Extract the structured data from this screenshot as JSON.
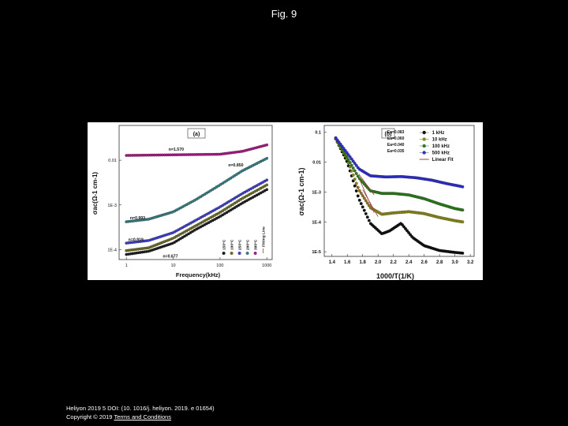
{
  "page": {
    "title": "Fig. 9"
  },
  "footer": {
    "citation": "Heliyon 2019 5 DOI: (10. 1016/j. heliyon. 2019. e 01654)",
    "copyright": "Copyright © 2019",
    "terms_link": "Terms and Conditions"
  },
  "chart_data": [
    {
      "type": "scatter",
      "panel_label": "(a)",
      "xlabel": "Frequency(kHz)",
      "ylabel": "σac(Ω-1 cm-1)",
      "xscale": "log",
      "yscale": "log",
      "xlim": [
        0.7,
        1300
      ],
      "ylim": [
        6e-05,
        0.06
      ],
      "x_ticks": [
        "1",
        "10",
        "100",
        "1000"
      ],
      "y_ticks": [
        "0.01",
        "1E-3",
        "1E-4"
      ],
      "annotations": [
        {
          "text": "n=1.570",
          "series": "390°C"
        },
        {
          "text": "n=0.850",
          "series": "290°C"
        },
        {
          "text": "n=0.993",
          "series": "290°C"
        },
        {
          "text": "n=0.919",
          "series": "190°C"
        },
        {
          "text": "n=0.677",
          "series": "150°C"
        }
      ],
      "legend_position": "bottom-right",
      "series": [
        {
          "name": "150°C",
          "color": "#202020",
          "x": [
            1,
            3,
            10,
            30,
            100,
            300,
            1000
          ],
          "y": [
            7.8e-05,
            9.2e-05,
            0.00014,
            0.00028,
            0.00055,
            0.0011,
            0.0022
          ]
        },
        {
          "name": "190°C",
          "color": "#6b6b2a",
          "x": [
            1,
            3,
            10,
            30,
            100,
            300,
            1000
          ],
          "y": [
            9.5e-05,
            0.00011,
            0.00018,
            0.00034,
            0.00068,
            0.0014,
            0.0028
          ]
        },
        {
          "name": "250°C",
          "color": "#4040c0",
          "x": [
            1,
            3,
            10,
            30,
            100,
            300,
            1000
          ],
          "y": [
            0.00014,
            0.00016,
            0.00024,
            0.00045,
            0.0009,
            0.0018,
            0.0036
          ]
        },
        {
          "name": "290°C",
          "color": "#3a7a80",
          "x": [
            1,
            3,
            10,
            30,
            100,
            300,
            1000
          ],
          "y": [
            0.00042,
            0.00048,
            0.0007,
            0.0013,
            0.0028,
            0.0058,
            0.011
          ]
        },
        {
          "name": "390°C",
          "color": "#a02080",
          "x": [
            1,
            3,
            10,
            30,
            100,
            300,
            1000
          ],
          "y": [
            0.0128,
            0.013,
            0.0132,
            0.0134,
            0.0136,
            0.0158,
            0.022
          ]
        }
      ],
      "fitting_line_label": "Fitting Line"
    },
    {
      "type": "scatter",
      "panel_label": "(b)",
      "xlabel": "1000/T(1/K)",
      "ylabel": "σac(Ω-1 cm-1)",
      "yscale": "log",
      "xlim": [
        1.3,
        3.25
      ],
      "ylim": [
        7e-06,
        0.17
      ],
      "x_ticks": [
        "1.4",
        "1.6",
        "1.8",
        "2.0",
        "2.2",
        "2.4",
        "2.6",
        "2.8",
        "3.0",
        "3.2"
      ],
      "y_ticks": [
        "0.1",
        "0.01",
        "1E-3",
        "1E-4",
        "1E-5"
      ],
      "legend_position": "top-right",
      "activation_energies": [
        "Ea=0.083",
        "Ea=0.060",
        "Ea=0.040",
        "Ea=0.035"
      ],
      "series": [
        {
          "name": "1 kHz",
          "color": "#111111",
          "x": [
            1.45,
            1.6,
            1.75,
            1.9,
            2.05,
            2.15,
            2.3,
            2.45,
            2.6,
            2.8,
            3.0,
            3.1
          ],
          "y": [
            0.06,
            0.01,
            0.0006,
            9e-05,
            4e-05,
            5e-05,
            9e-05,
            3e-05,
            1.6e-05,
            1.1e-05,
            9.5e-06,
            9e-06
          ]
        },
        {
          "name": "10 kHz",
          "color": "#8a8a1a",
          "x": [
            1.45,
            1.6,
            1.75,
            1.9,
            2.05,
            2.2,
            2.4,
            2.6,
            2.8,
            3.0,
            3.1
          ],
          "y": [
            0.06,
            0.012,
            0.0012,
            0.0003,
            0.00018,
            0.0002,
            0.00022,
            0.00019,
            0.00014,
            0.00011,
            0.0001
          ]
        },
        {
          "name": "100 kHz",
          "color": "#2e7d1e",
          "x": [
            1.45,
            1.6,
            1.75,
            1.9,
            2.05,
            2.2,
            2.4,
            2.6,
            2.8,
            3.0,
            3.1
          ],
          "y": [
            0.065,
            0.014,
            0.003,
            0.0011,
            0.0009,
            0.0009,
            0.0008,
            0.0006,
            0.0004,
            0.00028,
            0.00025
          ]
        },
        {
          "name": "500 kHz",
          "color": "#3030d0",
          "x": [
            1.45,
            1.6,
            1.75,
            1.9,
            2.1,
            2.3,
            2.5,
            2.7,
            2.9,
            3.05,
            3.1
          ],
          "y": [
            0.065,
            0.02,
            0.006,
            0.0035,
            0.0032,
            0.0033,
            0.003,
            0.0025,
            0.0019,
            0.0016,
            0.0015
          ]
        }
      ],
      "fit_label": "Linear Fit"
    }
  ]
}
